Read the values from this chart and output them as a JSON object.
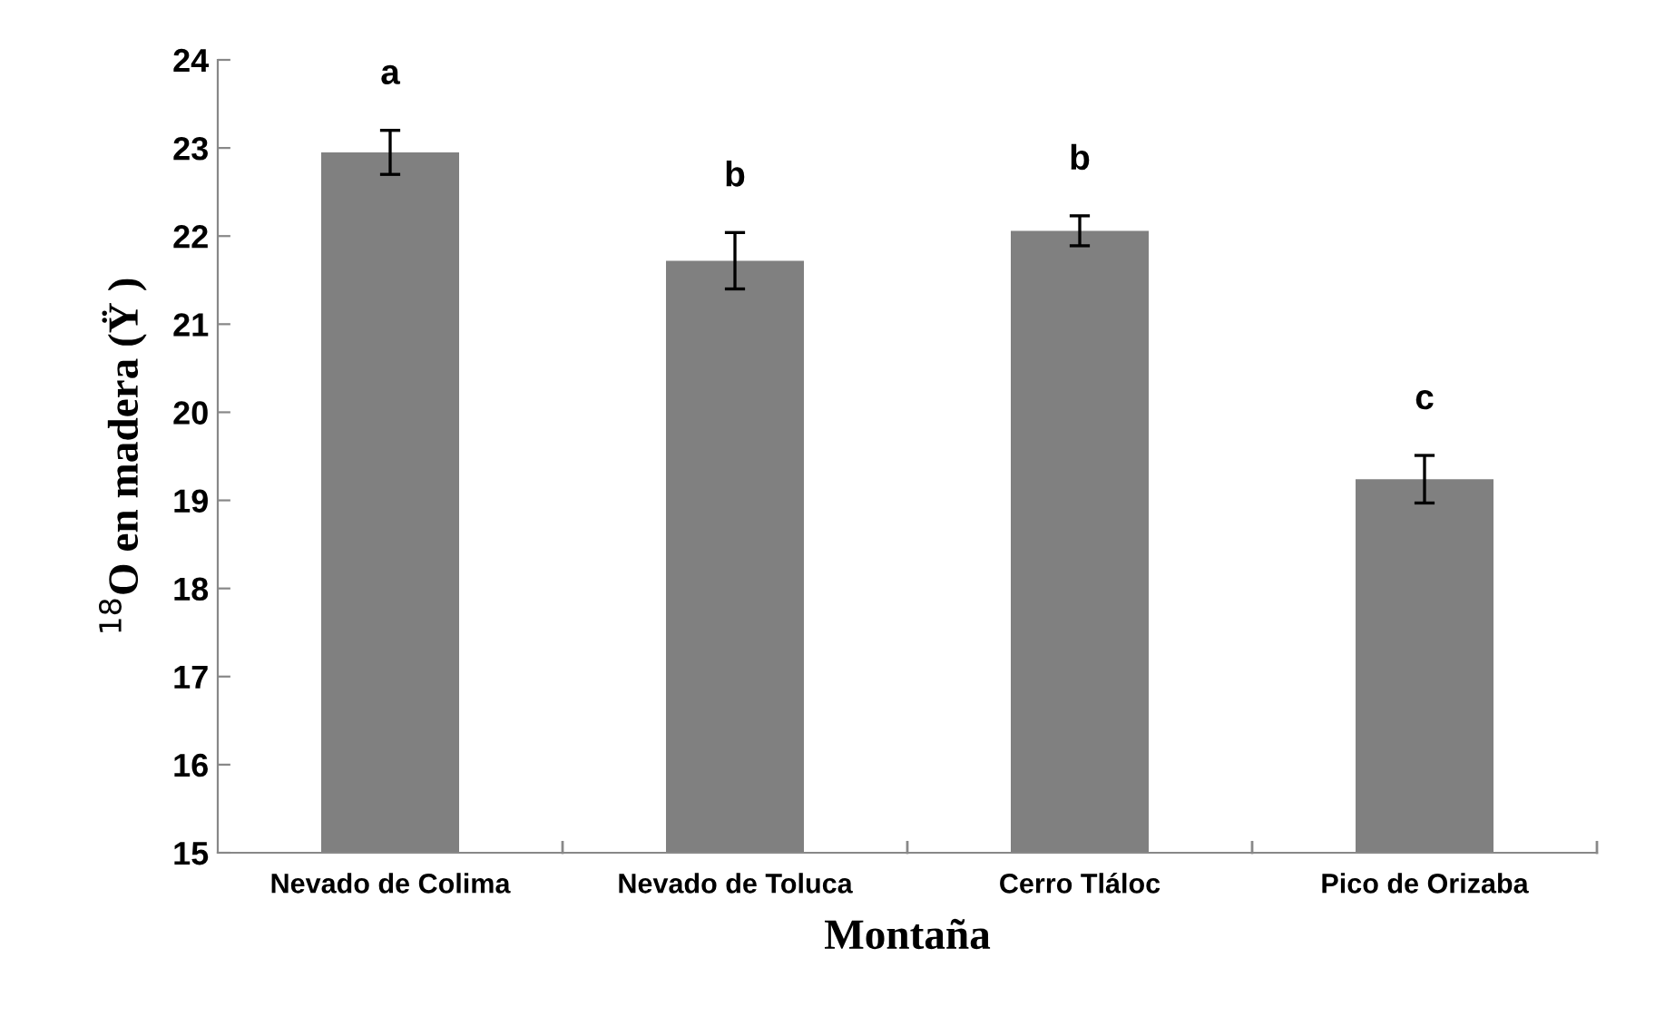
{
  "chart_data": {
    "type": "bar",
    "xlabel": "Montaña",
    "ylabel": "$^{18}$O en madera (Ÿ )",
    "categories": [
      "Nevado de Colima",
      "Nevado de Toluca",
      "Cerro Tláloc",
      "Pico de Orizaba"
    ],
    "values": [
      22.95,
      21.72,
      22.06,
      19.24
    ],
    "errors": [
      0.25,
      0.32,
      0.17,
      0.27
    ],
    "color": "#808080",
    "ylim": [
      15,
      24
    ],
    "yticks": [
      15,
      16,
      17,
      18,
      19,
      20,
      21,
      22,
      23,
      24
    ],
    "annotations": [
      "a",
      "b",
      "b",
      "c"
    ]
  }
}
